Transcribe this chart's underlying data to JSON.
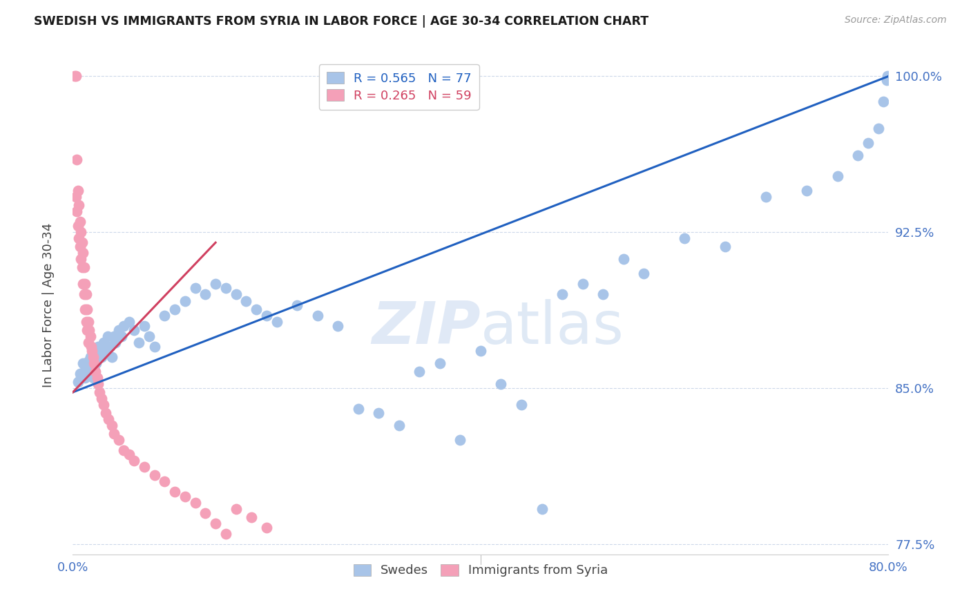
{
  "title": "SWEDISH VS IMMIGRANTS FROM SYRIA IN LABOR FORCE | AGE 30-34 CORRELATION CHART",
  "source": "Source: ZipAtlas.com",
  "ylabel": "In Labor Force | Age 30-34",
  "legend_labels": [
    "Swedes",
    "Immigrants from Syria"
  ],
  "r_blue": 0.565,
  "n_blue": 77,
  "r_pink": 0.265,
  "n_pink": 59,
  "blue_color": "#a8c4e8",
  "pink_color": "#f4a0b8",
  "blue_line_color": "#2060c0",
  "pink_line_color": "#d04060",
  "grid_color": "#c8d4e8",
  "right_axis_color": "#4472c4",
  "watermark_left": "ZIP",
  "watermark_right": "atlas",
  "xmin": 0.0,
  "xmax": 0.8,
  "ymin": 0.77,
  "ymax": 1.01,
  "right_yticks": [
    1.0,
    0.925,
    0.85,
    0.775
  ],
  "right_ytick_labels": [
    "100.0%",
    "92.5%",
    "85.0%",
    "77.5%"
  ],
  "xtick_left_label": "0.0%",
  "xtick_right_label": "80.0%",
  "blue_line_x0": 0.0,
  "blue_line_y0": 0.848,
  "blue_line_x1": 0.8,
  "blue_line_y1": 1.0,
  "pink_line_x0": 0.0,
  "pink_line_y0": 0.848,
  "pink_line_x1": 0.14,
  "pink_line_y1": 0.92,
  "blue_scatter_x": [
    0.005,
    0.007,
    0.008,
    0.01,
    0.011,
    0.012,
    0.013,
    0.014,
    0.015,
    0.016,
    0.017,
    0.018,
    0.019,
    0.02,
    0.021,
    0.022,
    0.023,
    0.025,
    0.026,
    0.028,
    0.03,
    0.032,
    0.034,
    0.036,
    0.038,
    0.04,
    0.042,
    0.045,
    0.048,
    0.05,
    0.055,
    0.06,
    0.065,
    0.07,
    0.075,
    0.08,
    0.09,
    0.1,
    0.11,
    0.12,
    0.13,
    0.14,
    0.15,
    0.16,
    0.17,
    0.18,
    0.19,
    0.2,
    0.22,
    0.24,
    0.26,
    0.28,
    0.3,
    0.32,
    0.34,
    0.36,
    0.38,
    0.4,
    0.42,
    0.44,
    0.46,
    0.48,
    0.5,
    0.52,
    0.54,
    0.56,
    0.6,
    0.64,
    0.68,
    0.72,
    0.75,
    0.77,
    0.78,
    0.79,
    0.795,
    0.798,
    0.799
  ],
  "blue_scatter_y": [
    0.853,
    0.857,
    0.855,
    0.862,
    0.858,
    0.855,
    0.86,
    0.857,
    0.863,
    0.859,
    0.865,
    0.862,
    0.858,
    0.855,
    0.868,
    0.865,
    0.862,
    0.87,
    0.868,
    0.865,
    0.872,
    0.868,
    0.875,
    0.87,
    0.865,
    0.875,
    0.872,
    0.878,
    0.875,
    0.88,
    0.882,
    0.878,
    0.872,
    0.88,
    0.875,
    0.87,
    0.885,
    0.888,
    0.892,
    0.898,
    0.895,
    0.9,
    0.898,
    0.895,
    0.892,
    0.888,
    0.885,
    0.882,
    0.89,
    0.885,
    0.88,
    0.84,
    0.838,
    0.832,
    0.858,
    0.862,
    0.825,
    0.868,
    0.852,
    0.842,
    0.792,
    0.895,
    0.9,
    0.895,
    0.912,
    0.905,
    0.922,
    0.918,
    0.942,
    0.945,
    0.952,
    0.962,
    0.968,
    0.975,
    0.988,
    0.998,
    1.0
  ],
  "pink_scatter_x": [
    0.002,
    0.003,
    0.003,
    0.004,
    0.004,
    0.005,
    0.005,
    0.006,
    0.006,
    0.007,
    0.007,
    0.008,
    0.008,
    0.009,
    0.009,
    0.01,
    0.01,
    0.011,
    0.011,
    0.012,
    0.012,
    0.013,
    0.013,
    0.014,
    0.014,
    0.015,
    0.015,
    0.016,
    0.017,
    0.018,
    0.019,
    0.02,
    0.021,
    0.022,
    0.024,
    0.025,
    0.026,
    0.028,
    0.03,
    0.032,
    0.035,
    0.038,
    0.04,
    0.045,
    0.05,
    0.055,
    0.06,
    0.07,
    0.08,
    0.09,
    0.1,
    0.11,
    0.12,
    0.13,
    0.14,
    0.15,
    0.16,
    0.175,
    0.19
  ],
  "pink_scatter_y": [
    1.0,
    1.0,
    0.942,
    0.96,
    0.935,
    0.945,
    0.928,
    0.938,
    0.922,
    0.93,
    0.918,
    0.925,
    0.912,
    0.92,
    0.908,
    0.915,
    0.9,
    0.908,
    0.895,
    0.9,
    0.888,
    0.895,
    0.882,
    0.888,
    0.878,
    0.882,
    0.872,
    0.878,
    0.875,
    0.87,
    0.868,
    0.865,
    0.862,
    0.858,
    0.855,
    0.852,
    0.848,
    0.845,
    0.842,
    0.838,
    0.835,
    0.832,
    0.828,
    0.825,
    0.82,
    0.818,
    0.815,
    0.812,
    0.808,
    0.805,
    0.8,
    0.798,
    0.795,
    0.79,
    0.785,
    0.78,
    0.792,
    0.788,
    0.783
  ]
}
